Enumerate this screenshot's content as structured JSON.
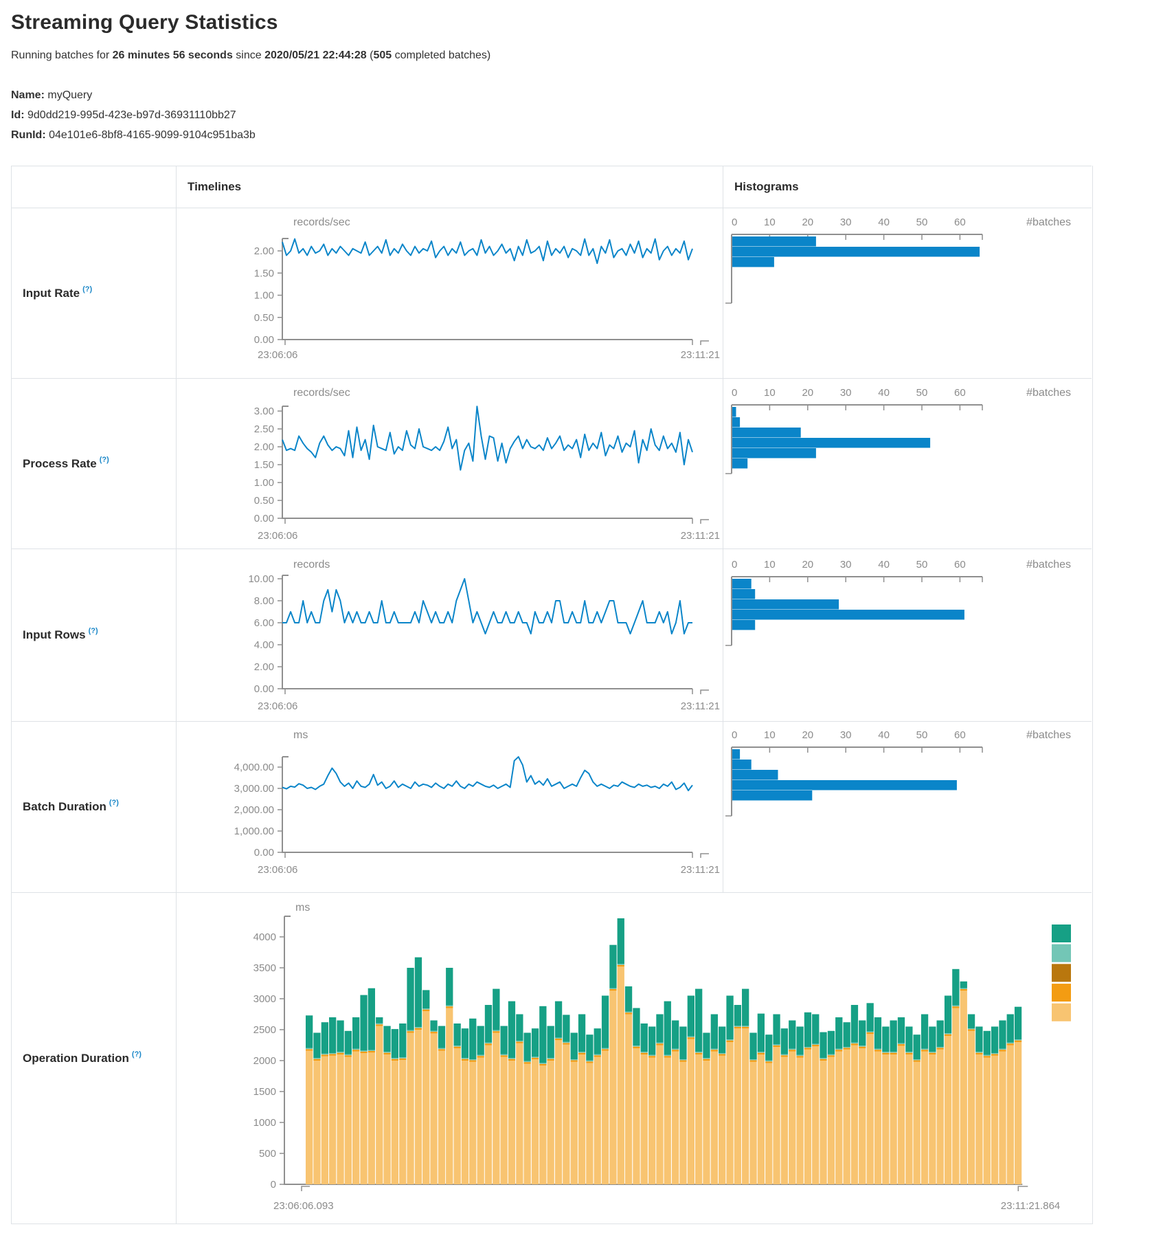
{
  "header": {
    "title": "Streaming Query Statistics",
    "running": {
      "prefix": "Running batches for ",
      "duration": "26 minutes 56 seconds",
      "mid": " since ",
      "start": "2020/05/21 22:44:28",
      "open": " (",
      "count": "505",
      "suffix": " completed batches)"
    }
  },
  "meta": {
    "items": [
      {
        "label": "Name:",
        "value": "myQuery"
      },
      {
        "label": "Id:",
        "value": "9d0dd219-995d-423e-b97d-36931110bb27"
      },
      {
        "label": "RunId:",
        "value": "04e101e6-8bf8-4165-9099-9104c951ba3b"
      }
    ]
  },
  "table": {
    "col_timelines": "Timelines",
    "col_histograms": "Histograms"
  },
  "rows": [
    {
      "label": "Input Rate",
      "help": "(?)"
    },
    {
      "label": "Process Rate",
      "help": "(?)"
    },
    {
      "label": "Input Rows",
      "help": "(?)"
    },
    {
      "label": "Batch Duration",
      "help": "(?)"
    },
    {
      "label": "Operation Duration",
      "help": "(?)"
    }
  ],
  "colors": {
    "blue": "#0a85c9",
    "green": "#16a085",
    "light_teal": "#73c6b6",
    "brown": "#b9770e",
    "orange": "#f39c12",
    "tan": "#f8c471",
    "axis_gray": "#8f8f8f",
    "chart_text_gray": "#8b8b8b",
    "border_gray": "#dee2e6"
  },
  "chart_data": [
    {
      "id": "input-rate-timeline",
      "type": "line",
      "ylabel": "records/sec",
      "yticks": [
        "2.00",
        "1.50",
        "1.00",
        "0.50",
        "0.00"
      ],
      "ytick_vals": [
        2,
        1.5,
        1,
        0.5,
        0
      ],
      "x_range": [
        "23:06:06",
        "23:11:21"
      ],
      "ylim": [
        0,
        2.28
      ],
      "values": [
        2.2,
        1.9,
        2.0,
        2.27,
        1.95,
        2.05,
        1.9,
        2.1,
        1.95,
        2.0,
        2.15,
        1.9,
        2.05,
        1.95,
        2.1,
        2.0,
        1.9,
        2.05,
        2.0,
        1.95,
        2.2,
        1.9,
        2.0,
        2.1,
        1.95,
        2.25,
        1.9,
        2.05,
        1.95,
        2.15,
        2.0,
        1.9,
        2.1,
        1.95,
        2.05,
        2.0,
        2.22,
        1.85,
        2.0,
        2.1,
        1.9,
        2.05,
        1.95,
        2.2,
        1.9,
        2.0,
        2.05,
        1.9,
        2.25,
        1.95,
        2.1,
        1.9,
        2.0,
        2.15,
        1.95,
        2.05,
        1.78,
        2.1,
        1.9,
        2.25,
        1.95,
        2.0,
        2.1,
        1.78,
        2.22,
        1.9,
        2.05,
        1.95,
        2.1,
        1.85,
        2.05,
        2.0,
        1.9,
        2.27,
        1.9,
        2.05,
        1.72,
        2.1,
        1.95,
        2.25,
        1.85,
        2.0,
        2.05,
        1.9,
        2.15,
        1.95,
        2.22,
        1.85,
        2.05,
        1.95,
        2.27,
        1.8,
        2.0,
        2.1,
        1.9,
        2.05,
        1.95,
        2.22,
        1.8,
        2.05
      ]
    },
    {
      "id": "input-rate-histogram",
      "type": "bar",
      "orientation": "horizontal",
      "xlabel": "#batches",
      "xticks": [
        0,
        10,
        20,
        30,
        40,
        50,
        60
      ],
      "xlim": [
        0,
        66
      ],
      "values": [
        22,
        65,
        11
      ]
    },
    {
      "id": "process-rate-timeline",
      "type": "line",
      "ylabel": "records/sec",
      "yticks": [
        "3.00",
        "2.50",
        "2.00",
        "1.50",
        "1.00",
        "0.50",
        "0.00"
      ],
      "ytick_vals": [
        3,
        2.5,
        2,
        1.5,
        1,
        0.5,
        0
      ],
      "x_range": [
        "23:06:06",
        "23:11:21"
      ],
      "ylim": [
        0,
        3.13
      ],
      "values": [
        2.2,
        1.9,
        1.95,
        1.9,
        2.3,
        2.1,
        1.95,
        1.85,
        1.7,
        2.1,
        2.3,
        2.05,
        1.9,
        2.0,
        1.95,
        1.75,
        2.45,
        1.7,
        2.55,
        1.9,
        2.2,
        1.65,
        2.6,
        2.0,
        1.95,
        1.9,
        2.4,
        1.8,
        2.0,
        1.9,
        2.45,
        2.05,
        1.95,
        2.5,
        2.0,
        1.95,
        1.9,
        2.0,
        1.9,
        2.15,
        2.55,
        1.95,
        2.2,
        1.35,
        1.9,
        2.1,
        1.6,
        3.13,
        2.3,
        1.65,
        2.3,
        2.25,
        1.6,
        2.1,
        1.55,
        1.95,
        2.15,
        2.3,
        1.95,
        2.2,
        2.0,
        1.95,
        2.05,
        1.9,
        2.25,
        1.95,
        2.1,
        2.3,
        1.9,
        2.05,
        1.95,
        2.2,
        1.7,
        2.35,
        1.9,
        2.1,
        1.95,
        2.4,
        1.75,
        2.05,
        1.95,
        2.3,
        1.85,
        2.1,
        2.0,
        2.45,
        1.55,
        2.2,
        1.9,
        2.5,
        2.05,
        1.9,
        2.3,
        1.95,
        2.1,
        1.85,
        2.4,
        1.5,
        2.2,
        1.85
      ]
    },
    {
      "id": "process-rate-histogram",
      "type": "bar",
      "orientation": "horizontal",
      "xlabel": "#batches",
      "xticks": [
        0,
        10,
        20,
        30,
        40,
        50,
        60
      ],
      "xlim": [
        0,
        66
      ],
      "values": [
        1,
        2,
        18,
        52,
        22,
        4
      ]
    },
    {
      "id": "input-rows-timeline",
      "type": "line",
      "ylabel": "records",
      "yticks": [
        "10.00",
        "8.00",
        "6.00",
        "4.00",
        "2.00",
        "0.00"
      ],
      "ytick_vals": [
        10,
        8,
        6,
        4,
        2,
        0
      ],
      "x_range": [
        "23:06:06",
        "23:11:21"
      ],
      "ylim": [
        0,
        10.3
      ],
      "values": [
        6,
        6,
        7,
        6,
        6,
        8,
        6,
        7,
        6,
        6,
        8,
        9,
        7,
        9,
        8,
        6,
        7,
        6,
        7,
        6,
        6,
        7,
        6,
        6,
        8,
        6,
        6,
        7,
        6,
        6,
        6,
        6,
        7,
        6,
        8,
        7,
        6,
        7,
        6,
        6,
        7,
        6,
        8,
        9,
        10,
        8,
        6,
        7,
        6,
        5,
        6,
        7,
        6,
        6,
        7,
        6,
        6,
        7,
        6,
        6,
        5,
        7,
        6,
        6,
        7,
        6,
        8,
        8,
        6,
        6,
        7,
        6,
        6,
        8,
        6,
        6,
        7,
        6,
        7,
        8,
        8,
        6,
        6,
        6,
        5,
        6,
        7,
        8,
        6,
        6,
        6,
        7,
        6,
        7,
        5,
        6,
        8,
        5,
        6,
        6
      ]
    },
    {
      "id": "input-rows-histogram",
      "type": "bar",
      "orientation": "horizontal",
      "xlabel": "#batches",
      "xticks": [
        0,
        10,
        20,
        30,
        40,
        50,
        60
      ],
      "xlim": [
        0,
        66
      ],
      "values": [
        5,
        6,
        28,
        61,
        6
      ]
    },
    {
      "id": "batch-duration-timeline",
      "type": "line",
      "ylabel": "ms",
      "yticks": [
        "4,000.00",
        "3,000.00",
        "2,000.00",
        "1,000.00",
        "0.00"
      ],
      "ytick_vals": [
        4000,
        3000,
        2000,
        1000,
        0
      ],
      "x_range": [
        "23:06:06",
        "23:11:21"
      ],
      "ylim": [
        0,
        4480
      ],
      "values": [
        3050,
        2980,
        3100,
        3060,
        3220,
        3150,
        3000,
        3050,
        2950,
        3100,
        3200,
        3600,
        3950,
        3700,
        3300,
        3100,
        3250,
        3000,
        3350,
        3100,
        3050,
        3200,
        3650,
        3150,
        3300,
        3000,
        3100,
        3350,
        3050,
        3200,
        3100,
        3000,
        3300,
        3100,
        3200,
        3150,
        3050,
        3250,
        3100,
        3000,
        3200,
        3100,
        3350,
        3100,
        3000,
        3200,
        3100,
        3300,
        3200,
        3100,
        3050,
        3150,
        3000,
        3100,
        3200,
        3050,
        4300,
        4480,
        4100,
        3300,
        3600,
        3200,
        3350,
        3150,
        3450,
        3100,
        3200,
        3300,
        3000,
        3100,
        3200,
        3100,
        3500,
        3850,
        3700,
        3300,
        3100,
        3200,
        3100,
        3000,
        3150,
        3100,
        3300,
        3200,
        3100,
        3050,
        3200,
        3100,
        3150,
        3050,
        3100,
        3000,
        3200,
        3100,
        3300,
        2950,
        3050,
        3250,
        2900,
        3150
      ]
    },
    {
      "id": "batch-duration-histogram",
      "type": "bar",
      "orientation": "horizontal",
      "xlabel": "#batches",
      "xticks": [
        0,
        10,
        20,
        30,
        40,
        50,
        60
      ],
      "xlim": [
        0,
        66
      ],
      "values": [
        2,
        5,
        12,
        59,
        21
      ]
    },
    {
      "id": "operation-duration-stacked",
      "type": "bar",
      "stacked": true,
      "ylabel": "ms",
      "yticks": [
        "4000",
        "3500",
        "3000",
        "2500",
        "2000",
        "1500",
        "1000",
        "500",
        "0"
      ],
      "ytick_vals": [
        4000,
        3500,
        3000,
        2500,
        2000,
        1500,
        1000,
        500,
        0
      ],
      "x_range": [
        "23:06:06.093",
        "23:11:21.864"
      ],
      "ylim": [
        0,
        4333
      ],
      "legend_colors": [
        "#16a085",
        "#73c6b6",
        "#b9770e",
        "#f39c12",
        "#f8c471"
      ],
      "orange_sliver_ms": 26,
      "teal_light_sliver_ms": 16,
      "totals": [
        2730,
        2450,
        2620,
        2700,
        2650,
        2480,
        2700,
        3060,
        3170,
        2700,
        2560,
        2510,
        2600,
        3500,
        3670,
        3140,
        2650,
        2560,
        3500,
        2600,
        2520,
        2680,
        2560,
        2900,
        3160,
        2560,
        2960,
        2750,
        2450,
        2520,
        2880,
        2560,
        2960,
        2740,
        2450,
        2750,
        2420,
        2520,
        3050,
        3870,
        4300,
        3200,
        2850,
        2600,
        2550,
        2750,
        2960,
        2650,
        2550,
        3050,
        3160,
        2450,
        2750,
        2550,
        3050,
        2900,
        3160,
        2450,
        2760,
        2420,
        2750,
        2520,
        2650,
        2550,
        2780,
        2750,
        2460,
        2480,
        2700,
        2620,
        2900,
        2650,
        2930,
        2700,
        2550,
        2650,
        2700,
        2550,
        2420,
        2750,
        2550,
        2650,
        3050,
        3480,
        3280,
        2750,
        2550,
        2480,
        2550,
        2650,
        2750,
        2870
      ],
      "tan_values": [
        2160,
        2000,
        2070,
        2080,
        2100,
        2060,
        2150,
        2120,
        2130,
        2560,
        2100,
        2000,
        2010,
        2450,
        2500,
        2800,
        2440,
        2160,
        2850,
        2200,
        2000,
        1980,
        2050,
        2250,
        2450,
        2060,
        2000,
        2280,
        1950,
        2020,
        1920,
        2000,
        2330,
        2260,
        1980,
        2100,
        1960,
        2060,
        2160,
        3130,
        3520,
        2750,
        2200,
        2100,
        2050,
        2250,
        2050,
        2150,
        1980,
        2350,
        2100,
        2000,
        2150,
        2080,
        2300,
        2520,
        2520,
        1980,
        2100,
        1960,
        2220,
        2060,
        2150,
        2050,
        2180,
        2230,
        2000,
        2060,
        2150,
        2180,
        2250,
        2200,
        2430,
        2150,
        2100,
        2100,
        2240,
        2100,
        1980,
        2150,
        2100,
        2180,
        2400,
        2850,
        3130,
        2480,
        2100,
        2050,
        2080,
        2150,
        2250,
        2300
      ]
    }
  ]
}
